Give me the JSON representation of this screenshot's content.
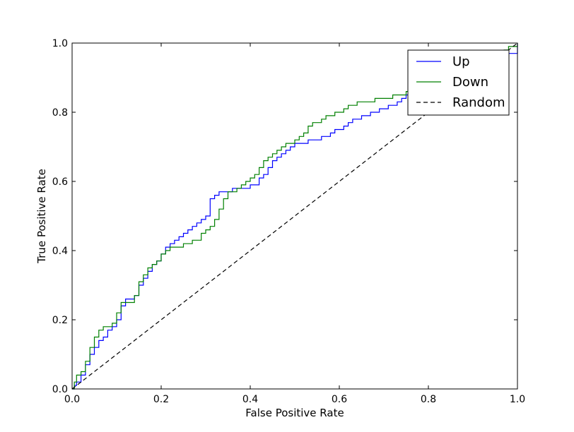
{
  "chart_data": {
    "type": "line",
    "xlabel": "False Positive Rate",
    "ylabel": "True Positive Rate",
    "xlim": [
      0.0,
      1.0
    ],
    "ylim": [
      0.0,
      1.0
    ],
    "xticks": [
      "0.0",
      "0.2",
      "0.4",
      "0.6",
      "0.8",
      "1.0"
    ],
    "yticks": [
      "0.0",
      "0.2",
      "0.4",
      "0.6",
      "0.8",
      "1.0"
    ],
    "grid": false,
    "legend_position": "top-right",
    "series": [
      {
        "name": "Up",
        "color": "#0000ff",
        "dash": "solid",
        "x": [
          0.0,
          0.005,
          0.01,
          0.02,
          0.03,
          0.04,
          0.05,
          0.06,
          0.07,
          0.08,
          0.09,
          0.1,
          0.11,
          0.12,
          0.13,
          0.14,
          0.15,
          0.16,
          0.17,
          0.18,
          0.19,
          0.2,
          0.21,
          0.22,
          0.23,
          0.24,
          0.25,
          0.26,
          0.27,
          0.28,
          0.29,
          0.3,
          0.31,
          0.32,
          0.33,
          0.34,
          0.35,
          0.36,
          0.37,
          0.38,
          0.39,
          0.4,
          0.41,
          0.42,
          0.43,
          0.44,
          0.45,
          0.46,
          0.47,
          0.48,
          0.49,
          0.5,
          0.51,
          0.52,
          0.53,
          0.54,
          0.55,
          0.56,
          0.57,
          0.58,
          0.59,
          0.6,
          0.61,
          0.62,
          0.63,
          0.64,
          0.65,
          0.66,
          0.67,
          0.68,
          0.69,
          0.7,
          0.71,
          0.72,
          0.73,
          0.74,
          0.75,
          0.76,
          0.77,
          0.78,
          0.79,
          0.8,
          0.85,
          0.9,
          0.95,
          1.0
        ],
        "y": [
          0.0,
          0.01,
          0.02,
          0.04,
          0.07,
          0.1,
          0.12,
          0.14,
          0.15,
          0.17,
          0.18,
          0.2,
          0.24,
          0.26,
          0.26,
          0.27,
          0.3,
          0.32,
          0.34,
          0.36,
          0.37,
          0.39,
          0.41,
          0.42,
          0.43,
          0.44,
          0.45,
          0.46,
          0.47,
          0.48,
          0.49,
          0.5,
          0.55,
          0.56,
          0.57,
          0.57,
          0.57,
          0.58,
          0.58,
          0.58,
          0.58,
          0.59,
          0.59,
          0.61,
          0.62,
          0.64,
          0.66,
          0.67,
          0.68,
          0.69,
          0.7,
          0.71,
          0.71,
          0.71,
          0.72,
          0.72,
          0.72,
          0.73,
          0.73,
          0.74,
          0.75,
          0.75,
          0.76,
          0.77,
          0.78,
          0.78,
          0.79,
          0.79,
          0.8,
          0.8,
          0.81,
          0.81,
          0.82,
          0.82,
          0.83,
          0.84,
          0.85,
          0.85,
          0.86,
          0.86,
          0.86,
          0.87,
          0.9,
          0.93,
          0.97,
          1.0
        ]
      },
      {
        "name": "Down",
        "color": "#008000",
        "dash": "solid",
        "x": [
          0.0,
          0.005,
          0.01,
          0.02,
          0.03,
          0.04,
          0.05,
          0.06,
          0.07,
          0.08,
          0.09,
          0.1,
          0.11,
          0.12,
          0.13,
          0.14,
          0.15,
          0.16,
          0.17,
          0.18,
          0.19,
          0.2,
          0.21,
          0.22,
          0.23,
          0.24,
          0.25,
          0.26,
          0.27,
          0.28,
          0.29,
          0.3,
          0.31,
          0.32,
          0.33,
          0.34,
          0.35,
          0.36,
          0.37,
          0.38,
          0.39,
          0.4,
          0.41,
          0.42,
          0.43,
          0.44,
          0.45,
          0.46,
          0.47,
          0.48,
          0.49,
          0.5,
          0.51,
          0.52,
          0.53,
          0.54,
          0.55,
          0.56,
          0.57,
          0.58,
          0.59,
          0.6,
          0.61,
          0.62,
          0.63,
          0.64,
          0.65,
          0.66,
          0.67,
          0.68,
          0.69,
          0.7,
          0.71,
          0.72,
          0.73,
          0.74,
          0.75,
          0.76,
          0.77,
          0.78,
          0.79,
          0.8,
          0.85,
          0.9,
          0.95,
          0.97,
          0.98,
          1.0
        ],
        "y": [
          0.0,
          0.02,
          0.04,
          0.05,
          0.08,
          0.12,
          0.15,
          0.17,
          0.18,
          0.18,
          0.19,
          0.22,
          0.25,
          0.25,
          0.25,
          0.27,
          0.31,
          0.33,
          0.35,
          0.36,
          0.37,
          0.39,
          0.4,
          0.41,
          0.41,
          0.41,
          0.42,
          0.42,
          0.43,
          0.43,
          0.45,
          0.46,
          0.47,
          0.49,
          0.52,
          0.55,
          0.57,
          0.57,
          0.58,
          0.59,
          0.6,
          0.61,
          0.62,
          0.64,
          0.66,
          0.67,
          0.68,
          0.69,
          0.7,
          0.71,
          0.71,
          0.72,
          0.73,
          0.74,
          0.76,
          0.77,
          0.77,
          0.78,
          0.79,
          0.79,
          0.8,
          0.8,
          0.81,
          0.82,
          0.82,
          0.83,
          0.83,
          0.83,
          0.83,
          0.84,
          0.84,
          0.84,
          0.84,
          0.85,
          0.85,
          0.85,
          0.86,
          0.86,
          0.86,
          0.86,
          0.86,
          0.87,
          0.9,
          0.93,
          0.97,
          0.98,
          0.99,
          1.0
        ]
      },
      {
        "name": "Random",
        "color": "#000000",
        "dash": "dashed",
        "x": [
          0.0,
          1.0
        ],
        "y": [
          0.0,
          1.0
        ]
      }
    ]
  }
}
